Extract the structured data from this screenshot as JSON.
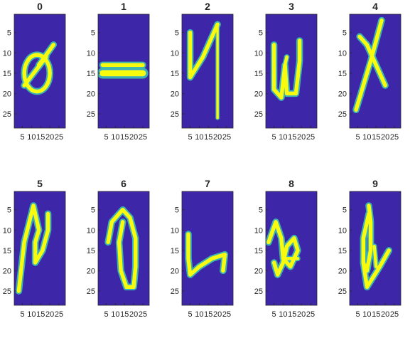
{
  "chart_data": {
    "type": "heatmap",
    "layout": "2x5 grid of image subplots",
    "colormap": "parula",
    "colors": {
      "background": "#3e26a8",
      "stroke": "#f9fb0e",
      "edge": "#3ac6a8",
      "mid": "#2f9cf0"
    },
    "grid": false,
    "xlim": [
      1,
      28
    ],
    "ylim": [
      1,
      28
    ],
    "xticks": [
      5,
      10,
      15,
      20,
      25
    ],
    "yticks": [
      5,
      10,
      15,
      20,
      25
    ],
    "xticklabels": [
      "5",
      "10",
      "15",
      "20",
      "25"
    ],
    "yticklabels": [
      "5",
      "10",
      "15",
      "20",
      "25"
    ],
    "panels": [
      {
        "title": "0",
        "shape": "slashed-zero"
      },
      {
        "title": "1",
        "shape": "horizontal-bar"
      },
      {
        "title": "2",
        "shape": "tall-y"
      },
      {
        "title": "3",
        "shape": "w"
      },
      {
        "title": "4",
        "shape": "x"
      },
      {
        "title": "5",
        "shape": "n-hook"
      },
      {
        "title": "6",
        "shape": "open-loop"
      },
      {
        "title": "7",
        "shape": "l-hook"
      },
      {
        "title": "8",
        "shape": "loopy-8"
      },
      {
        "title": "9",
        "shape": "loop-v"
      }
    ]
  }
}
